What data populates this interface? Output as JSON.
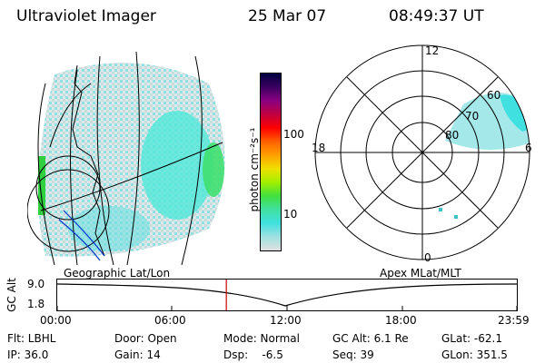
{
  "header": {
    "title": "Ultraviolet Imager",
    "date": "25 Mar 07",
    "time": "08:49:37 UT"
  },
  "colorbar": {
    "unit": "photon cm⁻²s⁻¹",
    "ticks": [
      "100",
      "10"
    ],
    "scale": "log",
    "colors": [
      "#000040",
      "#3a0060",
      "#8a0080",
      "#c00040",
      "#ff0000",
      "#ff6000",
      "#ffa000",
      "#f0e000",
      "#a0f000",
      "#40e040",
      "#40e0a0",
      "#40e0e0",
      "#a0e0e0",
      "#e0e0e0"
    ]
  },
  "geo_panel": {
    "label": "Geographic Lat/Lon"
  },
  "polar_panel": {
    "label": "Apex MLat/MLT",
    "mlt_labels": {
      "top": "12",
      "left": "18",
      "right": "6",
      "bottom": "0"
    },
    "lat_labels": [
      "60",
      "70",
      "80"
    ]
  },
  "alt_plot": {
    "ylabel": "GC Alt",
    "yticks": [
      "9.0",
      "1.8"
    ],
    "xticks": [
      "00:00",
      "06:00",
      "12:00",
      "18:00",
      "23:59"
    ],
    "marker_time_hours": 8.83
  },
  "info": {
    "flt": "Flt: LBHL",
    "ip": "IP: 36.0",
    "door": "Door: Open",
    "gain": "Gain: 14",
    "mode": "Mode: Normal",
    "dsp": "Dsp:    -6.5",
    "gcalt": "GC Alt: 6.1 Re",
    "seq": "Seq: 39",
    "glat": "GLat: -62.1",
    "glon": "GLon: 351.5"
  }
}
